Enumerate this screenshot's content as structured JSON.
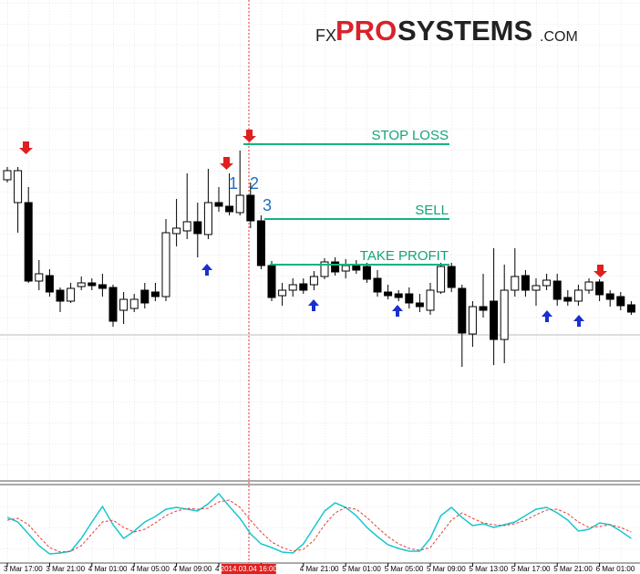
{
  "chart_data": {
    "type": "candlestick",
    "logo": {
      "prefix": "FX",
      "brand": "PRO",
      "name": "SYSTEMS",
      "suffix": ".COM"
    },
    "categories": [
      "3 Mar 17:00",
      null,
      null,
      null,
      "3 Mar 21:00",
      null,
      null,
      null,
      "4 Mar 01:00",
      null,
      null,
      null,
      "4 Mar 05:00",
      null,
      null,
      null,
      "4 Mar 09:00",
      null,
      null,
      null,
      "4",
      null,
      null,
      null,
      "17:00",
      null,
      null,
      null,
      "4 Mar 21:00",
      null,
      null,
      null,
      "5 Mar 01:00",
      null,
      null,
      null,
      "5 Mar 05:00",
      null,
      null,
      null,
      "5 Mar 09:00",
      null,
      null,
      null,
      "5 Mar 13:00",
      null,
      null,
      null,
      "5 Mar 17:00",
      null,
      null,
      null,
      "5 Mar 21:00",
      null,
      null,
      null,
      "6 Mar 01:00",
      null,
      null,
      null
    ],
    "cursor_label": "2014.03.04 16:00",
    "open": [
      203,
      178,
      178,
      92,
      98,
      82,
      70,
      86,
      90,
      88,
      85,
      60,
      62,
      82,
      80,
      75,
      144,
      147,
      157,
      143,
      178,
      174,
      167,
      186,
      158,
      109,
      76,
      82,
      89,
      88,
      97,
      113,
      103,
      110,
      108,
      95,
      80,
      78,
      78,
      68,
      60,
      80,
      108,
      84,
      34,
      64,
      70,
      28,
      82,
      98,
      82,
      87,
      92,
      74,
      70,
      82,
      91,
      78,
      75,
      66
    ],
    "high": [
      217,
      217,
      195,
      115,
      105,
      85,
      90,
      97,
      95,
      100,
      88,
      80,
      78,
      90,
      90,
      160,
      182,
      210,
      178,
      215,
      195,
      210,
      235,
      200,
      164,
      114,
      90,
      95,
      95,
      103,
      117,
      118,
      116,
      115,
      112,
      104,
      88,
      82,
      85,
      78,
      90,
      112,
      112,
      88,
      70,
      100,
      128,
      110,
      128,
      104,
      95,
      100,
      100,
      82,
      88,
      95,
      94,
      82,
      80,
      70
    ],
    "low": [
      200,
      145,
      90,
      82,
      75,
      58,
      68,
      82,
      82,
      75,
      42,
      45,
      58,
      62,
      70,
      70,
      130,
      138,
      118,
      138,
      168,
      164,
      164,
      150,
      105,
      70,
      65,
      75,
      78,
      82,
      94,
      98,
      95,
      100,
      90,
      75,
      72,
      70,
      62,
      58,
      55,
      78,
      80,
      -2,
      20,
      52,
      0,
      2,
      75,
      75,
      65,
      82,
      65,
      65,
      65,
      78,
      70,
      64,
      60,
      55
    ],
    "close": [
      213,
      213,
      92,
      100,
      80,
      70,
      84,
      90,
      87,
      84,
      48,
      72,
      72,
      68,
      75,
      145,
      150,
      157,
      144,
      178,
      174,
      168,
      186,
      158,
      109,
      74,
      82,
      88,
      82,
      97,
      113,
      102,
      109,
      104,
      94,
      80,
      76,
      74,
      68,
      64,
      82,
      108,
      85,
      35,
      64,
      60,
      28,
      82,
      97,
      82,
      87,
      93,
      72,
      70,
      82,
      91,
      77,
      72,
      65,
      58
    ],
    "levels": [
      {
        "label": "STOP LOSS",
        "value": 242
      },
      {
        "label": "SELL",
        "value": 160
      },
      {
        "label": "TAKE PROFIT",
        "value": 110
      }
    ],
    "steps": [
      "1",
      "2",
      "3"
    ],
    "oscillator": {
      "series": [
        {
          "color": "#19c6cf",
          "values": [
            45,
            40,
            27,
            14,
            5,
            6,
            8,
            22,
            40,
            57,
            37,
            22,
            30,
            40,
            46,
            54,
            56,
            54,
            52,
            60,
            71,
            57,
            44,
            27,
            16,
            12,
            7,
            6,
            16,
            34,
            52,
            61,
            56,
            47,
            34,
            24,
            15,
            11,
            8,
            8,
            22,
            47,
            56,
            45,
            36,
            38,
            34,
            37,
            40,
            47,
            54,
            56,
            50,
            42,
            30,
            32,
            39,
            37,
            30,
            22
          ]
        },
        {
          "color": "#e0403a",
          "values": [
            42,
            44,
            37,
            24,
            12,
            7,
            8,
            14,
            27,
            40,
            42,
            34,
            29,
            32,
            39,
            47,
            52,
            55,
            54,
            55,
            62,
            64,
            56,
            42,
            29,
            18,
            12,
            8,
            10,
            20,
            37,
            50,
            56,
            54,
            45,
            34,
            24,
            16,
            11,
            9,
            12,
            27,
            42,
            50,
            44,
            39,
            37,
            36,
            38,
            42,
            48,
            53,
            54,
            49,
            40,
            34,
            35,
            37,
            34,
            29
          ]
        }
      ]
    }
  }
}
